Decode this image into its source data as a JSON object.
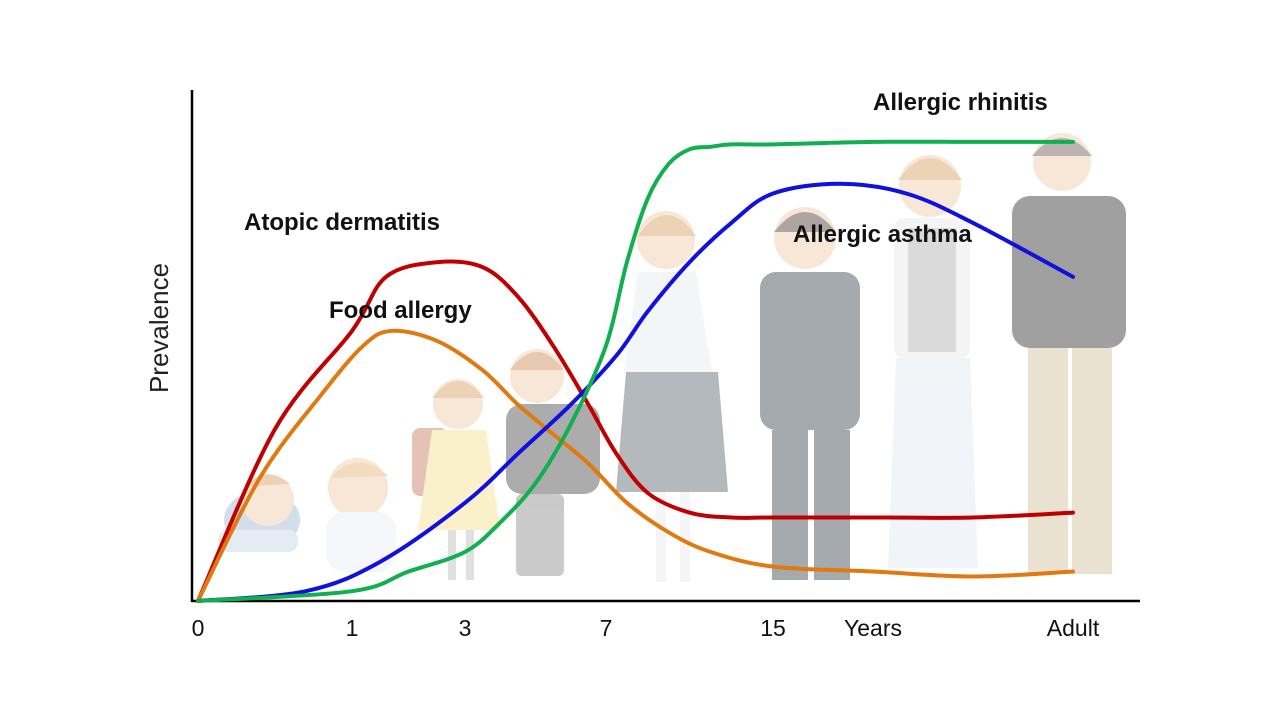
{
  "chart_data": {
    "type": "line",
    "title": "",
    "ylabel": "Prevalence",
    "xlabel": "",
    "x_ticks": [
      "0",
      "1",
      "3",
      "7",
      "15",
      "Years",
      "Adult"
    ],
    "x_positions": [
      0,
      1,
      3,
      7,
      15,
      18,
      24
    ],
    "xlim": [
      0,
      25
    ],
    "ylim": [
      0,
      1
    ],
    "grid": false,
    "legend": "none",
    "series": [
      {
        "name": "Atopic dermatitis",
        "color": "#c00000",
        "x": [
          0,
          0.5,
          1,
          1.6,
          2.5,
          3.5,
          4.5,
          5.5,
          6.5,
          7.5,
          9,
          11,
          13,
          15,
          18,
          21,
          24
        ],
        "y": [
          0,
          0.35,
          0.55,
          0.66,
          0.69,
          0.68,
          0.62,
          0.52,
          0.4,
          0.3,
          0.22,
          0.18,
          0.17,
          0.17,
          0.17,
          0.17,
          0.18
        ]
      },
      {
        "name": "Food allergy",
        "color": "#e07a10",
        "x": [
          0,
          0.4,
          0.8,
          1.2,
          1.7,
          2.5,
          3.5,
          4.5,
          5.5,
          6.5,
          8,
          10,
          12,
          15,
          18,
          21,
          24
        ],
        "y": [
          0,
          0.25,
          0.42,
          0.52,
          0.55,
          0.53,
          0.47,
          0.4,
          0.34,
          0.28,
          0.2,
          0.14,
          0.1,
          0.07,
          0.06,
          0.05,
          0.06
        ]
      },
      {
        "name": "Allergic asthma",
        "color": "#1010e0",
        "x": [
          0,
          0.7,
          1.5,
          3,
          4.5,
          6,
          7.5,
          9,
          11,
          13,
          15,
          17,
          19,
          21,
          24
        ],
        "y": [
          0,
          0.02,
          0.08,
          0.2,
          0.3,
          0.4,
          0.5,
          0.59,
          0.69,
          0.77,
          0.83,
          0.85,
          0.83,
          0.77,
          0.66
        ]
      },
      {
        "name": "Allergic rhinitis",
        "color": "#10b050",
        "x": [
          0,
          1,
          2,
          3,
          4,
          5,
          6,
          7,
          8,
          9,
          10,
          11,
          12,
          13,
          15,
          18,
          21,
          24
        ],
        "y": [
          0,
          0.02,
          0.06,
          0.1,
          0.16,
          0.24,
          0.36,
          0.52,
          0.69,
          0.82,
          0.89,
          0.92,
          0.925,
          0.93,
          0.93,
          0.935,
          0.935,
          0.935
        ]
      }
    ],
    "annotations": [
      {
        "text": "Atopic dermatitis",
        "series": "Atopic dermatitis"
      },
      {
        "text": "Food allergy",
        "series": "Food allergy"
      },
      {
        "text": "Allergic asthma",
        "series": "Allergic asthma"
      },
      {
        "text": "Allergic rhinitis",
        "series": "Allergic rhinitis"
      }
    ]
  }
}
